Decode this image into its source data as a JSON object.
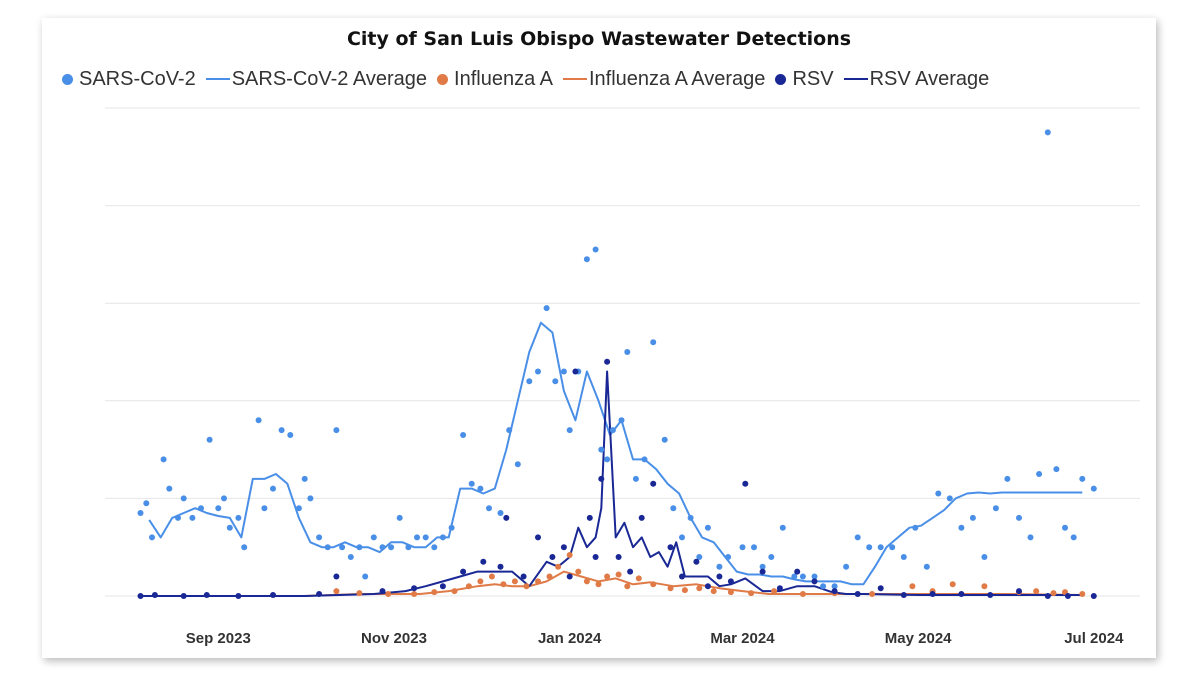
{
  "chart_data": {
    "type": "scatter",
    "title": "City of San Luis Obispo Wastewater Detections",
    "xlabel": "",
    "ylabel": "",
    "x_ticks": [
      "Sep 2023",
      "Nov 2023",
      "Jan 2024",
      "Mar 2024",
      "May 2024",
      "Jul 2024"
    ],
    "ylim": [
      0,
      5
    ],
    "grid": true,
    "legend_position": "top-left",
    "series": [
      {
        "name": "SARS-CoV-2",
        "kind": "points",
        "color": "#4a8fe7",
        "x": [
          "2023-08-05",
          "2023-08-07",
          "2023-08-09",
          "2023-08-13",
          "2023-08-15",
          "2023-08-18",
          "2023-08-20",
          "2023-08-23",
          "2023-08-26",
          "2023-08-29",
          "2023-09-01",
          "2023-09-03",
          "2023-09-05",
          "2023-09-08",
          "2023-09-10",
          "2023-09-15",
          "2023-09-17",
          "2023-09-20",
          "2023-09-23",
          "2023-09-26",
          "2023-09-29",
          "2023-10-01",
          "2023-10-03",
          "2023-10-06",
          "2023-10-09",
          "2023-10-12",
          "2023-10-14",
          "2023-10-17",
          "2023-10-20",
          "2023-10-22",
          "2023-10-25",
          "2023-10-28",
          "2023-10-31",
          "2023-11-03",
          "2023-11-06",
          "2023-11-09",
          "2023-11-12",
          "2023-11-15",
          "2023-11-18",
          "2023-11-21",
          "2023-11-25",
          "2023-11-28",
          "2023-12-01",
          "2023-12-04",
          "2023-12-08",
          "2023-12-11",
          "2023-12-14",
          "2023-12-18",
          "2023-12-21",
          "2023-12-24",
          "2023-12-27",
          "2023-12-30",
          "2024-01-01",
          "2024-01-04",
          "2024-01-07",
          "2024-01-10",
          "2024-01-12",
          "2024-01-14",
          "2024-01-16",
          "2024-01-19",
          "2024-01-21",
          "2024-01-24",
          "2024-01-27",
          "2024-01-30",
          "2024-02-03",
          "2024-02-06",
          "2024-02-09",
          "2024-02-12",
          "2024-02-15",
          "2024-02-18",
          "2024-02-22",
          "2024-02-25",
          "2024-03-01",
          "2024-03-05",
          "2024-03-08",
          "2024-03-11",
          "2024-03-15",
          "2024-03-19",
          "2024-03-22",
          "2024-03-26",
          "2024-03-29",
          "2024-04-02",
          "2024-04-06",
          "2024-04-10",
          "2024-04-14",
          "2024-04-18",
          "2024-04-22",
          "2024-04-26",
          "2024-04-30",
          "2024-05-04",
          "2024-05-08",
          "2024-05-12",
          "2024-05-16",
          "2024-05-20",
          "2024-05-24",
          "2024-05-28",
          "2024-06-01",
          "2024-06-05",
          "2024-06-09",
          "2024-06-12",
          "2024-06-15",
          "2024-06-18",
          "2024-06-21",
          "2024-06-24",
          "2024-06-27",
          "2024-07-01"
        ],
        "y": [
          0.85,
          0.95,
          0.6,
          1.4,
          1.1,
          0.8,
          1.0,
          0.8,
          0.9,
          1.6,
          0.9,
          1.0,
          0.7,
          0.8,
          0.5,
          1.8,
          0.9,
          1.1,
          1.7,
          1.65,
          0.9,
          1.2,
          1.0,
          0.6,
          0.5,
          1.7,
          0.5,
          0.4,
          0.5,
          0.2,
          0.6,
          0.5,
          0.5,
          0.8,
          0.5,
          0.6,
          0.6,
          0.5,
          0.6,
          0.7,
          1.65,
          1.15,
          1.1,
          0.9,
          0.85,
          1.7,
          1.35,
          2.2,
          2.3,
          2.95,
          2.2,
          2.3,
          1.7,
          2.3,
          3.45,
          3.55,
          1.5,
          1.4,
          1.7,
          1.8,
          2.5,
          1.2,
          1.4,
          2.6,
          1.6,
          0.9,
          0.6,
          0.8,
          0.4,
          0.7,
          0.3,
          0.4,
          0.5,
          0.5,
          0.3,
          0.4,
          0.7,
          0.2,
          0.2,
          0.2,
          0.1,
          0.1,
          0.3,
          0.6,
          0.5,
          0.5,
          0.5,
          0.4,
          0.7,
          0.3,
          1.05,
          1.0,
          0.7,
          0.8,
          0.4,
          0.9,
          1.2,
          0.8,
          0.6,
          1.25,
          4.75,
          1.3,
          0.7,
          0.6,
          1.2,
          1.1
        ]
      },
      {
        "name": "SARS-CoV-2 Average",
        "kind": "line",
        "color": "#4a8fe7",
        "x": [
          "2023-08-08",
          "2023-08-12",
          "2023-08-16",
          "2023-08-20",
          "2023-08-24",
          "2023-08-28",
          "2023-09-01",
          "2023-09-05",
          "2023-09-09",
          "2023-09-13",
          "2023-09-17",
          "2023-09-21",
          "2023-09-25",
          "2023-09-29",
          "2023-10-03",
          "2023-10-07",
          "2023-10-11",
          "2023-10-15",
          "2023-10-19",
          "2023-10-23",
          "2023-10-27",
          "2023-10-31",
          "2023-11-04",
          "2023-11-08",
          "2023-11-12",
          "2023-11-16",
          "2023-11-20",
          "2023-11-24",
          "2023-11-28",
          "2023-12-02",
          "2023-12-06",
          "2023-12-10",
          "2023-12-14",
          "2023-12-18",
          "2023-12-22",
          "2023-12-26",
          "2023-12-30",
          "2024-01-03",
          "2024-01-07",
          "2024-01-11",
          "2024-01-15",
          "2024-01-19",
          "2024-01-23",
          "2024-01-27",
          "2024-01-31",
          "2024-02-04",
          "2024-02-08",
          "2024-02-12",
          "2024-02-16",
          "2024-02-20",
          "2024-02-24",
          "2024-02-28",
          "2024-03-03",
          "2024-03-07",
          "2024-03-11",
          "2024-03-15",
          "2024-03-19",
          "2024-03-23",
          "2024-03-27",
          "2024-03-31",
          "2024-04-04",
          "2024-04-08",
          "2024-04-12",
          "2024-04-16",
          "2024-04-20",
          "2024-04-24",
          "2024-04-28",
          "2024-05-02",
          "2024-05-06",
          "2024-05-10",
          "2024-05-14",
          "2024-05-18",
          "2024-05-22",
          "2024-05-26",
          "2024-05-30",
          "2024-06-03",
          "2024-06-07",
          "2024-06-11",
          "2024-06-15",
          "2024-06-19",
          "2024-06-23",
          "2024-06-27"
        ],
        "y": [
          0.78,
          0.6,
          0.8,
          0.85,
          0.9,
          0.85,
          0.82,
          0.8,
          0.6,
          1.2,
          1.2,
          1.25,
          1.15,
          0.8,
          0.55,
          0.5,
          0.5,
          0.55,
          0.5,
          0.5,
          0.45,
          0.55,
          0.55,
          0.5,
          0.5,
          0.6,
          0.6,
          1.1,
          1.1,
          1.05,
          1.1,
          1.5,
          2.0,
          2.5,
          2.8,
          2.7,
          2.1,
          1.8,
          2.3,
          2.0,
          1.65,
          1.8,
          1.4,
          1.4,
          1.3,
          1.15,
          1.05,
          0.8,
          0.6,
          0.55,
          0.4,
          0.25,
          0.22,
          0.22,
          0.2,
          0.2,
          0.17,
          0.15,
          0.15,
          0.15,
          0.15,
          0.12,
          0.12,
          0.3,
          0.5,
          0.6,
          0.7,
          0.72,
          0.8,
          0.88,
          1.0,
          1.05,
          1.06,
          1.05,
          1.06,
          1.06,
          1.06,
          1.06,
          1.06,
          1.06,
          1.06,
          1.06
        ]
      },
      {
        "name": "Influenza A",
        "kind": "points",
        "color": "#e07b47",
        "x": [
          "2023-10-12",
          "2023-10-20",
          "2023-10-30",
          "2023-11-08",
          "2023-11-15",
          "2023-11-22",
          "2023-11-27",
          "2023-12-01",
          "2023-12-05",
          "2023-12-09",
          "2023-12-13",
          "2023-12-17",
          "2023-12-21",
          "2023-12-25",
          "2023-12-28",
          "2024-01-01",
          "2024-01-04",
          "2024-01-07",
          "2024-01-11",
          "2024-01-14",
          "2024-01-18",
          "2024-01-21",
          "2024-01-25",
          "2024-01-30",
          "2024-02-05",
          "2024-02-10",
          "2024-02-15",
          "2024-02-20",
          "2024-02-26",
          "2024-03-04",
          "2024-03-12",
          "2024-03-22",
          "2024-04-02",
          "2024-04-15",
          "2024-04-29",
          "2024-05-06",
          "2024-05-13",
          "2024-05-24",
          "2024-06-05",
          "2024-06-11",
          "2024-06-17",
          "2024-06-21",
          "2024-06-27"
        ],
        "y": [
          0.05,
          0.03,
          0.02,
          0.02,
          0.04,
          0.05,
          0.1,
          0.15,
          0.2,
          0.12,
          0.15,
          0.1,
          0.15,
          0.2,
          0.3,
          0.42,
          0.25,
          0.15,
          0.12,
          0.2,
          0.22,
          0.1,
          0.18,
          0.12,
          0.08,
          0.06,
          0.08,
          0.05,
          0.04,
          0.03,
          0.05,
          0.02,
          0.03,
          0.02,
          0.1,
          0.05,
          0.12,
          0.1,
          0.04,
          0.05,
          0.03,
          0.04,
          0.02
        ]
      },
      {
        "name": "Influenza A Average",
        "kind": "line",
        "color": "#e07b47",
        "x": [
          "2023-08-05",
          "2023-09-01",
          "2023-10-01",
          "2023-10-20",
          "2023-11-10",
          "2023-11-20",
          "2023-11-30",
          "2023-12-06",
          "2023-12-12",
          "2023-12-18",
          "2023-12-24",
          "2023-12-30",
          "2024-01-05",
          "2024-01-11",
          "2024-01-17",
          "2024-01-23",
          "2024-01-29",
          "2024-02-06",
          "2024-02-14",
          "2024-02-22",
          "2024-03-01",
          "2024-03-10",
          "2024-04-01",
          "2024-05-01",
          "2024-06-01",
          "2024-06-27"
        ],
        "y": [
          0.0,
          0.0,
          0.0,
          0.02,
          0.02,
          0.05,
          0.1,
          0.12,
          0.1,
          0.1,
          0.15,
          0.25,
          0.2,
          0.15,
          0.18,
          0.12,
          0.14,
          0.1,
          0.12,
          0.08,
          0.05,
          0.02,
          0.02,
          0.02,
          0.02,
          0.01
        ]
      },
      {
        "name": "RSV",
        "kind": "points",
        "color": "#1a2896",
        "x": [
          "2023-08-05",
          "2023-08-10",
          "2023-08-20",
          "2023-08-28",
          "2023-09-08",
          "2023-09-20",
          "2023-10-06",
          "2023-10-12",
          "2023-10-28",
          "2023-11-08",
          "2023-11-18",
          "2023-11-25",
          "2023-12-02",
          "2023-12-08",
          "2023-12-10",
          "2023-12-16",
          "2023-12-21",
          "2023-12-26",
          "2023-12-30",
          "2024-01-01",
          "2024-01-03",
          "2024-01-08",
          "2024-01-10",
          "2024-01-12",
          "2024-01-14",
          "2024-01-18",
          "2024-01-22",
          "2024-01-26",
          "2024-01-30",
          "2024-02-05",
          "2024-02-09",
          "2024-02-14",
          "2024-02-18",
          "2024-02-22",
          "2024-02-26",
          "2024-03-02",
          "2024-03-08",
          "2024-03-14",
          "2024-03-20",
          "2024-03-26",
          "2024-04-02",
          "2024-04-10",
          "2024-04-18",
          "2024-04-26",
          "2024-05-06",
          "2024-05-16",
          "2024-05-26",
          "2024-06-05",
          "2024-06-15",
          "2024-06-22",
          "2024-07-01"
        ],
        "y": [
          0.0,
          0.01,
          0.0,
          0.01,
          0.0,
          0.01,
          0.02,
          0.2,
          0.05,
          0.08,
          0.1,
          0.25,
          0.35,
          0.3,
          0.8,
          0.2,
          0.6,
          0.4,
          0.5,
          0.2,
          2.3,
          0.8,
          0.4,
          1.2,
          2.4,
          0.4,
          0.25,
          0.8,
          1.15,
          0.5,
          0.2,
          0.35,
          0.1,
          0.2,
          0.15,
          1.15,
          0.25,
          0.08,
          0.25,
          0.15,
          0.05,
          0.02,
          0.08,
          0.01,
          0.02,
          0.02,
          0.01,
          0.05,
          0.0,
          0.0,
          0.0
        ]
      },
      {
        "name": "RSV Average",
        "kind": "line",
        "color": "#1a2896",
        "x": [
          "2023-08-05",
          "2023-09-01",
          "2023-10-01",
          "2023-10-25",
          "2023-11-05",
          "2023-11-12",
          "2023-11-18",
          "2023-11-24",
          "2023-11-30",
          "2023-12-06",
          "2023-12-12",
          "2023-12-18",
          "2023-12-24",
          "2023-12-28",
          "2024-01-01",
          "2024-01-04",
          "2024-01-07",
          "2024-01-10",
          "2024-01-12",
          "2024-01-14",
          "2024-01-17",
          "2024-01-20",
          "2024-01-23",
          "2024-01-26",
          "2024-01-29",
          "2024-02-01",
          "2024-02-04",
          "2024-02-07",
          "2024-02-10",
          "2024-02-14",
          "2024-02-18",
          "2024-02-22",
          "2024-02-26",
          "2024-03-02",
          "2024-03-08",
          "2024-03-14",
          "2024-03-20",
          "2024-03-26",
          "2024-04-01",
          "2024-04-06",
          "2024-04-12",
          "2024-05-01",
          "2024-06-01",
          "2024-06-27"
        ],
        "y": [
          0.0,
          0.0,
          0.0,
          0.02,
          0.05,
          0.1,
          0.15,
          0.2,
          0.25,
          0.25,
          0.25,
          0.1,
          0.35,
          0.3,
          0.4,
          0.7,
          0.5,
          0.6,
          0.9,
          2.3,
          0.6,
          0.75,
          0.5,
          0.6,
          0.4,
          0.45,
          0.3,
          0.55,
          0.2,
          0.2,
          0.2,
          0.1,
          0.12,
          0.18,
          0.05,
          0.05,
          0.1,
          0.1,
          0.04,
          0.02,
          0.02,
          0.01,
          0.01,
          0.01
        ]
      }
    ]
  }
}
